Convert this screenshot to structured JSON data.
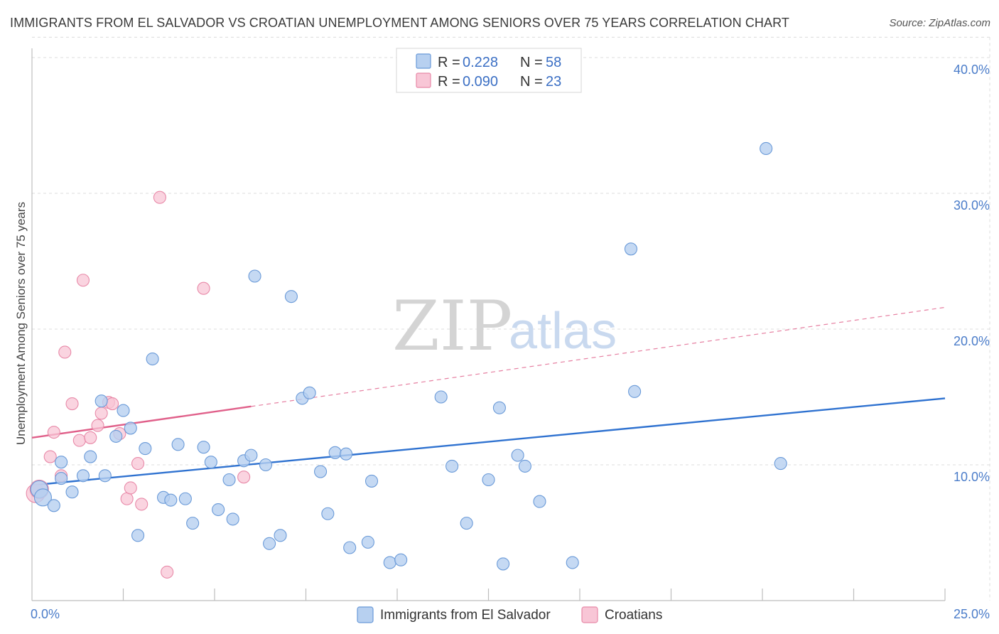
{
  "title": "IMMIGRANTS FROM EL SALVADOR VS CROATIAN UNEMPLOYMENT AMONG SENIORS OVER 75 YEARS CORRELATION CHART",
  "source": "Source: ZipAtlas.com",
  "watermark": {
    "zip": "ZIP",
    "atlas": "atlas"
  },
  "colors": {
    "blue_fill": "#b7d0f0",
    "blue_stroke": "#6a9ad8",
    "blue_line": "#2f72d0",
    "pink_fill": "#f8c6d6",
    "pink_stroke": "#e889a8",
    "pink_line": "#e0608a",
    "grid": "#dcdcdc",
    "axis_label": "#4a7cc9"
  },
  "legend": {
    "rows": [
      {
        "r_label": "R = ",
        "r_value": "0.228",
        "n_label": "N = ",
        "n_value": "58"
      },
      {
        "r_label": "R = ",
        "r_value": "0.090",
        "n_label": "N = ",
        "n_value": "23"
      }
    ]
  },
  "chart_data": {
    "type": "scatter",
    "title": "IMMIGRANTS FROM EL SALVADOR VS CROATIAN UNEMPLOYMENT AMONG SENIORS OVER 75 YEARS CORRELATION CHART",
    "xlabel": "",
    "ylabel": "Unemployment Among Seniors over 75 years",
    "xlim": [
      0,
      25
    ],
    "ylim": [
      0,
      41.5
    ],
    "x_tick_labels": [
      "0.0%",
      "25.0%"
    ],
    "y_ticks": [
      10,
      20,
      30,
      40
    ],
    "y_tick_labels": [
      "10.0%",
      "20.0%",
      "30.0%",
      "40.0%"
    ],
    "grid": true,
    "legend_position": "top-center",
    "series": [
      {
        "name": "Immigrants from El Salvador",
        "r": 0.228,
        "n": 58,
        "trend": {
          "x": [
            0,
            25
          ],
          "y": [
            8.5,
            14.9
          ],
          "style": "solid"
        },
        "points": [
          [
            0.2,
            8.2
          ],
          [
            0.3,
            7.6
          ],
          [
            0.6,
            7.0
          ],
          [
            0.8,
            9.0
          ],
          [
            1.4,
            9.2
          ],
          [
            0.8,
            10.2
          ],
          [
            1.1,
            8.0
          ],
          [
            1.6,
            10.6
          ],
          [
            1.9,
            14.7
          ],
          [
            2.0,
            9.2
          ],
          [
            2.3,
            12.1
          ],
          [
            2.5,
            14.0
          ],
          [
            2.7,
            12.7
          ],
          [
            2.9,
            4.8
          ],
          [
            3.1,
            11.2
          ],
          [
            3.3,
            17.8
          ],
          [
            3.6,
            7.6
          ],
          [
            3.8,
            7.4
          ],
          [
            4.0,
            11.5
          ],
          [
            4.2,
            7.5
          ],
          [
            4.4,
            5.7
          ],
          [
            4.7,
            11.3
          ],
          [
            4.9,
            10.2
          ],
          [
            5.1,
            6.7
          ],
          [
            5.4,
            8.9
          ],
          [
            5.5,
            6.0
          ],
          [
            5.8,
            10.3
          ],
          [
            6.0,
            10.7
          ],
          [
            6.1,
            23.9
          ],
          [
            6.4,
            10.0
          ],
          [
            6.5,
            4.2
          ],
          [
            6.8,
            4.8
          ],
          [
            7.1,
            22.4
          ],
          [
            7.4,
            14.9
          ],
          [
            7.6,
            15.3
          ],
          [
            7.9,
            9.5
          ],
          [
            8.1,
            6.4
          ],
          [
            8.3,
            10.9
          ],
          [
            8.6,
            10.8
          ],
          [
            8.7,
            3.9
          ],
          [
            9.2,
            4.3
          ],
          [
            9.3,
            8.8
          ],
          [
            9.8,
            2.8
          ],
          [
            10.1,
            3.0
          ],
          [
            11.2,
            15.0
          ],
          [
            11.5,
            9.9
          ],
          [
            11.9,
            5.7
          ],
          [
            12.5,
            8.9
          ],
          [
            12.8,
            14.2
          ],
          [
            12.9,
            2.7
          ],
          [
            13.3,
            10.7
          ],
          [
            13.5,
            9.9
          ],
          [
            13.9,
            7.3
          ],
          [
            14.8,
            2.8
          ],
          [
            16.4,
            25.9
          ],
          [
            16.5,
            15.4
          ],
          [
            20.1,
            33.3
          ],
          [
            20.5,
            10.1
          ]
        ]
      },
      {
        "name": "Croatians",
        "r": 0.09,
        "n": 23,
        "trend": {
          "x": [
            0,
            6
          ],
          "y": [
            12.0,
            14.3
          ],
          "style": "solid",
          "extend_to": [
            25,
            21.6
          ],
          "extend_style": "dashed"
        },
        "points": [
          [
            0.1,
            7.9
          ],
          [
            0.2,
            8.2
          ],
          [
            0.5,
            10.6
          ],
          [
            0.6,
            12.4
          ],
          [
            0.8,
            9.2
          ],
          [
            0.9,
            18.3
          ],
          [
            1.1,
            14.5
          ],
          [
            1.3,
            11.8
          ],
          [
            1.4,
            23.6
          ],
          [
            1.6,
            12.0
          ],
          [
            1.8,
            12.9
          ],
          [
            1.9,
            13.8
          ],
          [
            2.1,
            14.6
          ],
          [
            2.2,
            14.5
          ],
          [
            2.4,
            12.3
          ],
          [
            2.6,
            7.5
          ],
          [
            2.7,
            8.3
          ],
          [
            2.9,
            10.1
          ],
          [
            3.0,
            7.1
          ],
          [
            3.5,
            29.7
          ],
          [
            3.7,
            2.1
          ],
          [
            4.7,
            23.0
          ],
          [
            5.8,
            9.1
          ]
        ]
      }
    ]
  }
}
